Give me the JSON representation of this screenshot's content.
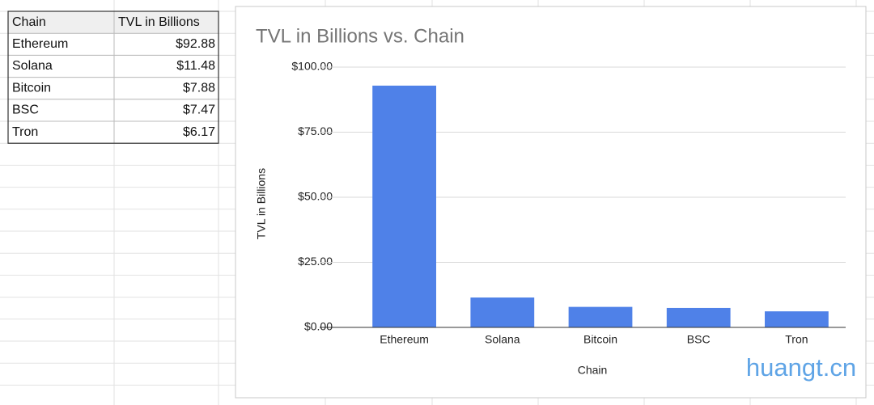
{
  "table": {
    "header": [
      "Chain",
      "TVL in Billions"
    ],
    "rows": [
      [
        "Ethereum",
        "$92.88"
      ],
      [
        "Solana",
        "$11.48"
      ],
      [
        "Bitcoin",
        "$7.88"
      ],
      [
        "BSC",
        "$7.47"
      ],
      [
        "Tron",
        "$6.17"
      ]
    ]
  },
  "chart_data": {
    "type": "bar",
    "title": "TVL in Billions vs. Chain",
    "x_label": "Chain",
    "y_label": "TVL in Billions",
    "categories": [
      "Ethereum",
      "Solana",
      "Bitcoin",
      "BSC",
      "Tron"
    ],
    "values": [
      92.88,
      11.48,
      7.88,
      7.47,
      6.17
    ],
    "color": "#4f81e8",
    "ylim": [
      0,
      100
    ],
    "yticks": [
      {
        "value": 0,
        "label": "$0.00"
      },
      {
        "value": 25,
        "label": "$25.00"
      },
      {
        "value": 50,
        "label": "$50.00"
      },
      {
        "value": 75,
        "label": "$75.00"
      },
      {
        "value": 100,
        "label": "$100.00"
      }
    ],
    "grid": true
  },
  "watermark": "huangt.cn"
}
